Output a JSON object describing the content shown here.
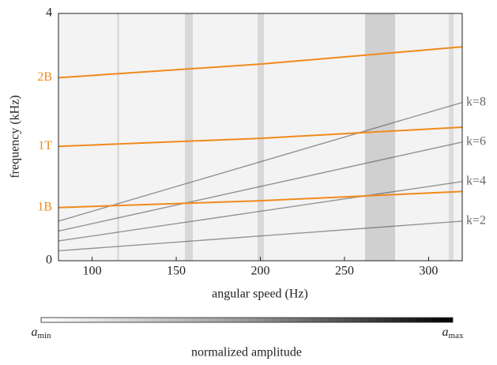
{
  "chart_data": {
    "type": "line",
    "xlabel": "angular speed (Hz)",
    "ylabel": "frequency (kHz)",
    "x": [
      80,
      200,
      320
    ],
    "xlim": [
      80,
      320
    ],
    "xticks": [
      100,
      150,
      200,
      250,
      300
    ],
    "ylim": [
      0,
      4
    ],
    "yticks": [
      0,
      4
    ],
    "series": [
      {
        "name": "k=2",
        "color": "#555555",
        "values": [
          0.16,
          0.4,
          0.64
        ]
      },
      {
        "name": "k=4",
        "color": "#555555",
        "values": [
          0.32,
          0.8,
          1.28
        ]
      },
      {
        "name": "k=6",
        "color": "#555555",
        "values": [
          0.48,
          1.2,
          1.92
        ]
      },
      {
        "name": "k=8",
        "color": "#555555",
        "values": [
          0.64,
          1.6,
          2.56
        ]
      },
      {
        "name": "1B",
        "color": "#f08a1c",
        "values": [
          0.86,
          0.97,
          1.12
        ]
      },
      {
        "name": "1T",
        "color": "#f08a1c",
        "values": [
          1.85,
          1.98,
          2.16
        ]
      },
      {
        "name": "2B",
        "color": "#f08a1c",
        "values": [
          2.96,
          3.18,
          3.46
        ]
      }
    ],
    "colorbar": {
      "label": "normalized amplitude",
      "min_label": "a",
      "min_sub": "min",
      "max_label": "a",
      "max_sub": "max"
    }
  }
}
